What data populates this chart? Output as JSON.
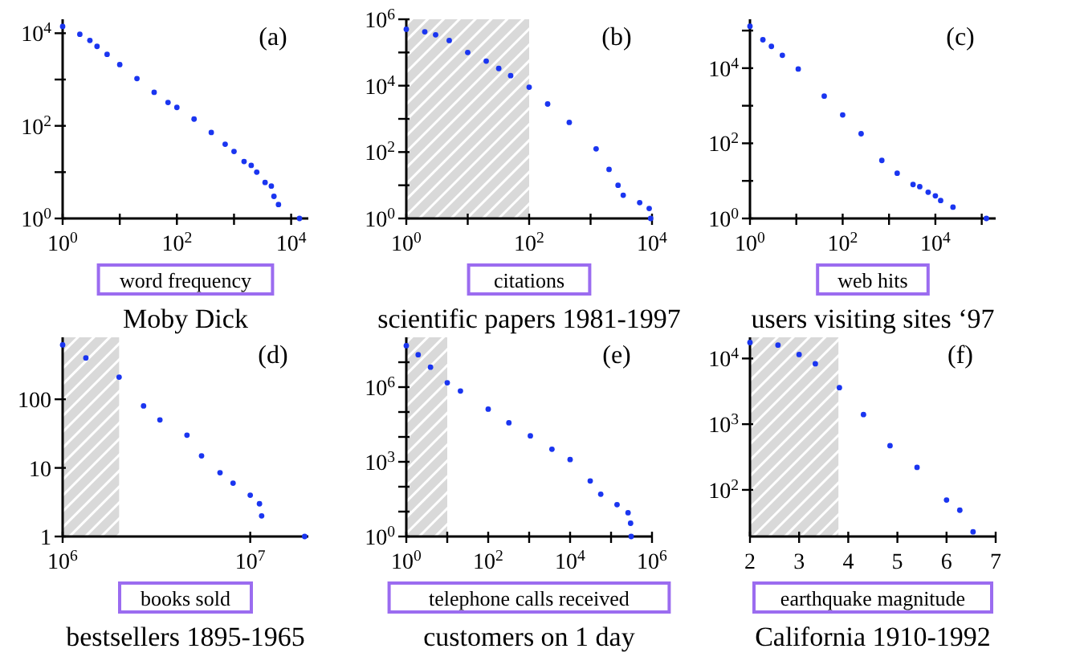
{
  "chart_data": [
    {
      "type": "scatter",
      "title": "Moby Dick",
      "xlabel": "word frequency",
      "annotations": [
        "(a)"
      ],
      "log": "xy",
      "marker": "circle",
      "xlim": [
        1,
        20000
      ],
      "ylim": [
        1,
        20000
      ],
      "xticks": [
        {
          "value": 1,
          "label": "10$^{0}$"
        },
        {
          "value": 10,
          "label": null
        },
        {
          "value": 100,
          "label": "10$^{2}$"
        },
        {
          "value": 1000,
          "label": null
        },
        {
          "value": 10000,
          "label": "10$^{4}$"
        }
      ],
      "yticks": [
        {
          "value": 1,
          "label": "10$^{0}$"
        },
        {
          "value": 10,
          "label": null
        },
        {
          "value": 100,
          "label": "10$^{2}$"
        },
        {
          "value": 1000,
          "label": null
        },
        {
          "value": 10000,
          "label": "10$^{4}$"
        }
      ],
      "series": [
        {
          "color": "#1a35f0",
          "x": [
            1,
            2,
            3,
            4,
            6,
            10,
            20,
            40,
            70,
            100,
            200,
            400,
            700,
            1000,
            1500,
            2000,
            2500,
            3500,
            4500,
            5000,
            6000,
            14000
          ],
          "values": [
            14000,
            9500,
            7000,
            5200,
            3500,
            2100,
            1050,
            530,
            320,
            250,
            140,
            72,
            40,
            28,
            17,
            14,
            10,
            6,
            5,
            3,
            2,
            1
          ]
        }
      ]
    },
    {
      "type": "scatter",
      "title": "scientific papers 1981-1997",
      "xlabel": "citations",
      "annotations": [
        "(b)"
      ],
      "log": "xy",
      "marker": "circle",
      "xlim": [
        1,
        10000
      ],
      "ylim": [
        1,
        1000000
      ],
      "xticks": [
        {
          "value": 1,
          "label": "10$^{0}$"
        },
        {
          "value": 10,
          "label": null
        },
        {
          "value": 100,
          "label": "10$^{2}$"
        },
        {
          "value": 1000,
          "label": null
        },
        {
          "value": 10000,
          "label": "10$^{4}$"
        }
      ],
      "yticks": [
        {
          "value": 1,
          "label": "10$^{0}$"
        },
        {
          "value": 10,
          "label": null
        },
        {
          "value": 100,
          "label": "10$^{2}$"
        },
        {
          "value": 1000,
          "label": null
        },
        {
          "value": 10000,
          "label": "10$^{4}$"
        },
        {
          "value": 100000,
          "label": null
        },
        {
          "value": 1000000,
          "label": "10$^{6}$"
        }
      ],
      "bands": [
        {
          "axis": "x",
          "from": 1,
          "to": 100,
          "color": "#d9d9d9"
        }
      ],
      "series": [
        {
          "color": "#1a35f0",
          "x": [
            1,
            2,
            3,
            5,
            10,
            20,
            32,
            50,
            100,
            200,
            450,
            1230,
            2000,
            2800,
            3400,
            6300,
            9000,
            9500
          ],
          "values": [
            500000,
            420000,
            340000,
            230000,
            100000,
            55000,
            33000,
            20000,
            9000,
            2800,
            780,
            125,
            30,
            10,
            5,
            3,
            2,
            1
          ]
        }
      ]
    },
    {
      "type": "scatter",
      "title": "users visiting sites ‘97",
      "xlabel": "web hits",
      "annotations": [
        "(c)"
      ],
      "log": "xy",
      "marker": "circle",
      "xlim": [
        1,
        200000
      ],
      "ylim": [
        1,
        200000
      ],
      "xticks": [
        {
          "value": 1,
          "label": "10$^{0}$"
        },
        {
          "value": 10,
          "label": null
        },
        {
          "value": 100,
          "label": "10$^{2}$"
        },
        {
          "value": 1000,
          "label": null
        },
        {
          "value": 10000,
          "label": "10$^{4}$"
        },
        {
          "value": 100000,
          "label": null
        }
      ],
      "yticks": [
        {
          "value": 1,
          "label": "10$^{0}$"
        },
        {
          "value": 10,
          "label": null
        },
        {
          "value": 100,
          "label": "10$^{2}$"
        },
        {
          "value": 1000,
          "label": null
        },
        {
          "value": 10000,
          "label": "10$^{4}$"
        },
        {
          "value": 100000,
          "label": null
        }
      ],
      "series": [
        {
          "color": "#1a35f0",
          "x": [
            1,
            1.9,
            2.9,
            5,
            11,
            40,
            100,
            250,
            700,
            1500,
            3300,
            4600,
            7000,
            10000,
            13000,
            24000,
            126000
          ],
          "values": [
            130000,
            57000,
            38000,
            22000,
            9500,
            1800,
            570,
            180,
            35,
            16,
            8,
            7,
            5,
            4,
            3,
            2,
            1
          ]
        }
      ]
    },
    {
      "type": "scatter",
      "title": "bestsellers 1895-1965",
      "xlabel": "books sold",
      "annotations": [
        "(d)"
      ],
      "log": "xy",
      "marker": "circle",
      "xlim": [
        1000000,
        20400000
      ],
      "ylim": [
        1,
        800
      ],
      "xticks": [
        {
          "value": 1000000,
          "label": "10$^{6}$"
        },
        {
          "value": 10000000,
          "label": "10$^{7}$"
        }
      ],
      "yticks": [
        1,
        10,
        100
      ],
      "bands": [
        {
          "axis": "x",
          "from": 1000000,
          "to": 2000000,
          "color": "#d9d9d9"
        }
      ],
      "series": [
        {
          "color": "#1a35f0",
          "x": [
            1000000,
            1330000,
            2000000,
            2700000,
            3300000,
            4600000,
            5500000,
            6900000,
            8100000,
            10000000,
            11200000,
            11500000,
            19500000
          ],
          "values": [
            620,
            400,
            210,
            80,
            50,
            30,
            15,
            8.5,
            6,
            4,
            3,
            2,
            1
          ]
        }
      ]
    },
    {
      "type": "scatter",
      "title": "customers on 1 day",
      "xlabel": "telephone calls received",
      "annotations": [
        "(e)"
      ],
      "log": "xy",
      "marker": "circle",
      "xlim": [
        1,
        1000000
      ],
      "ylim": [
        1,
        100000000
      ],
      "xticks": [
        {
          "value": 1,
          "label": "10$^{0}$"
        },
        {
          "value": 10,
          "label": null
        },
        {
          "value": 100,
          "label": "10$^{2}$"
        },
        {
          "value": 1000,
          "label": null
        },
        {
          "value": 10000,
          "label": "10$^{4}$"
        },
        {
          "value": 100000,
          "label": null
        },
        {
          "value": 1000000,
          "label": "10$^{6}$"
        }
      ],
      "yticks": [
        {
          "value": 1,
          "label": "10$^{0}$"
        },
        {
          "value": 10,
          "label": null
        },
        {
          "value": 100,
          "label": null
        },
        {
          "value": 1000,
          "label": "10$^{3}$"
        },
        {
          "value": 10000,
          "label": null
        },
        {
          "value": 100000,
          "label": null
        },
        {
          "value": 1000000,
          "label": "10$^{6}$"
        },
        {
          "value": 10000000,
          "label": null
        }
      ],
      "bands": [
        {
          "axis": "x",
          "from": 1,
          "to": 10,
          "color": "#d9d9d9"
        }
      ],
      "series": [
        {
          "color": "#1a35f0",
          "x": [
            1,
            1.95,
            3.9,
            10,
            21,
            100,
            320,
            1070,
            3600,
            10000,
            31000,
            56000,
            140000,
            260000,
            300000,
            310000
          ],
          "values": [
            46000000,
            20000000,
            6300000,
            1500000,
            700000,
            130000,
            37000,
            11000,
            3200,
            1230,
            170,
            50,
            19,
            9,
            3.4,
            1
          ]
        }
      ]
    },
    {
      "type": "scatter",
      "title": "California 1910-1992",
      "xlabel": "earthquake magnitude",
      "annotations": [
        "(f)"
      ],
      "log": "y",
      "marker": "circle",
      "xlim": [
        2,
        7
      ],
      "ylim": [
        19.5,
        21000
      ],
      "xticks": [
        2,
        3,
        4,
        5,
        6,
        7
      ],
      "yticks": [
        {
          "value": 100,
          "label": "10$^{2}$"
        },
        {
          "value": 1000,
          "label": "10$^{3}$"
        },
        {
          "value": 10000,
          "label": "10$^{4}$"
        }
      ],
      "bands": [
        {
          "axis": "x",
          "from": 2,
          "to": 3.8,
          "color": "#d9d9d9"
        }
      ],
      "series": [
        {
          "color": "#1a35f0",
          "x": [
            2,
            2.57,
            3,
            3.33,
            3.82,
            4.31,
            4.85,
            5.4,
            6,
            6.27,
            6.54
          ],
          "values": [
            17500,
            16000,
            11500,
            8300,
            3600,
            1400,
            470,
            220,
            70,
            49,
            23
          ]
        }
      ]
    }
  ]
}
